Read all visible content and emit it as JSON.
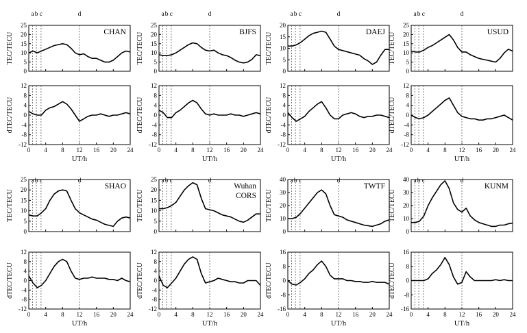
{
  "figure": {
    "x_label": "UT/h",
    "x_ticks": [
      0,
      4,
      8,
      12,
      16,
      20,
      24
    ],
    "x_range": [
      0,
      24
    ],
    "top_ylabel": "TEC/TECU",
    "bottom_ylabel": "dTEC/TECU",
    "events": [
      {
        "label": "a",
        "ut": 0.9
      },
      {
        "label": "b",
        "ut": 1.8
      },
      {
        "label": "c",
        "ut": 2.9
      },
      {
        "label": "d",
        "ut": 12.0
      }
    ]
  },
  "chart_data": [
    {
      "type": "line",
      "station": "CHAN",
      "tec": {
        "ylim": [
          0,
          25
        ],
        "yticks": [
          0,
          5,
          10,
          15,
          20,
          25
        ],
        "x": [
          0,
          1,
          2,
          3,
          4,
          5,
          6,
          7,
          8,
          9,
          10,
          11,
          12,
          13,
          14,
          15,
          16,
          17,
          18,
          19,
          20,
          21,
          22,
          23,
          24
        ],
        "y": [
          10,
          11,
          10,
          11,
          12,
          13,
          14,
          14.5,
          15,
          14.5,
          12.5,
          10,
          9,
          9.5,
          8,
          7,
          7,
          6,
          5,
          5,
          6,
          8,
          10,
          11,
          10.5
        ]
      },
      "dtec": {
        "ylim": [
          -12,
          12
        ],
        "yticks": [
          -12,
          -8,
          -4,
          0,
          4,
          8,
          12
        ],
        "x": [
          0,
          1,
          2,
          3,
          4,
          5,
          6,
          7,
          8,
          9,
          10,
          11,
          12,
          13,
          14,
          15,
          16,
          17,
          18,
          19,
          20,
          21,
          22,
          23,
          24
        ],
        "y": [
          1.5,
          0.5,
          0,
          0,
          2,
          3,
          3.5,
          4.5,
          5.5,
          4.5,
          2.5,
          0,
          -2.5,
          -1.5,
          -0.5,
          0,
          0,
          0.5,
          0,
          -0.5,
          0,
          0,
          0.5,
          1,
          0.5
        ]
      }
    },
    {
      "type": "line",
      "station": "BJFS",
      "tec": {
        "ylim": [
          0,
          25
        ],
        "yticks": [
          0,
          5,
          10,
          15,
          20,
          25
        ],
        "x": [
          0,
          1,
          2,
          3,
          4,
          5,
          6,
          7,
          8,
          9,
          10,
          11,
          12,
          13,
          14,
          15,
          16,
          17,
          18,
          19,
          20,
          21,
          22,
          23,
          24
        ],
        "y": [
          9,
          8.5,
          8.5,
          9,
          10,
          11.5,
          13,
          14.5,
          15.5,
          15,
          13,
          11.5,
          11,
          11.5,
          10,
          9,
          8.5,
          7.5,
          6,
          5,
          4.5,
          5,
          6.5,
          9,
          8.5
        ]
      },
      "dtec": {
        "ylim": [
          -12,
          12
        ],
        "yticks": [
          -12,
          -8,
          -4,
          0,
          4,
          8,
          12
        ],
        "x": [
          0,
          1,
          2,
          3,
          4,
          5,
          6,
          7,
          8,
          9,
          10,
          11,
          12,
          13,
          14,
          15,
          16,
          17,
          18,
          19,
          20,
          21,
          22,
          23,
          24
        ],
        "y": [
          2,
          1,
          -1,
          -1,
          1,
          2,
          3.5,
          5,
          6,
          5,
          2.5,
          0.5,
          0,
          0.5,
          0,
          0,
          0,
          0.5,
          0,
          0,
          -0.5,
          0,
          0.5,
          1,
          0.5
        ]
      }
    },
    {
      "type": "line",
      "station": "DAEJ",
      "tec": {
        "ylim": [
          0,
          20
        ],
        "yticks": [
          0,
          5,
          10,
          15,
          20
        ],
        "x": [
          0,
          1,
          2,
          3,
          4,
          5,
          6,
          7,
          8,
          9,
          10,
          11,
          12,
          13,
          14,
          15,
          16,
          17,
          18,
          19,
          20,
          21,
          22,
          23,
          24
        ],
        "y": [
          11,
          11,
          11.5,
          12.5,
          14,
          15.5,
          16.5,
          17,
          17.5,
          17,
          14,
          11,
          9.5,
          9,
          8.5,
          8,
          7.5,
          7,
          5.5,
          4.5,
          3,
          4,
          7,
          9.5,
          9.5
        ]
      },
      "dtec": {
        "ylim": [
          -12,
          12
        ],
        "yticks": [
          -12,
          -8,
          -4,
          0,
          4,
          8,
          12
        ],
        "x": [
          0,
          1,
          2,
          3,
          4,
          5,
          6,
          7,
          8,
          9,
          10,
          11,
          12,
          13,
          14,
          15,
          16,
          17,
          18,
          19,
          20,
          21,
          22,
          23,
          24
        ],
        "y": [
          1,
          -1,
          -2.5,
          -1.5,
          -0.5,
          1.5,
          3,
          4.5,
          5.5,
          3,
          0,
          -1.5,
          -1.5,
          0,
          0.5,
          1,
          0.5,
          -0.5,
          -1,
          -0.5,
          -0.5,
          0,
          0,
          -0.5,
          -1
        ]
      }
    },
    {
      "type": "line",
      "station": "USUD",
      "tec": {
        "ylim": [
          0,
          25
        ],
        "yticks": [
          0,
          5,
          10,
          15,
          20,
          25
        ],
        "x": [
          0,
          1,
          2,
          3,
          4,
          5,
          6,
          7,
          8,
          9,
          10,
          11,
          12,
          13,
          14,
          15,
          16,
          17,
          18,
          19,
          20,
          21,
          22,
          23,
          24
        ],
        "y": [
          11,
          10.5,
          10.5,
          11.5,
          13,
          14,
          15.5,
          17,
          18.5,
          20,
          17,
          13,
          10.5,
          10.5,
          9,
          8,
          7,
          6.5,
          6,
          5.5,
          5,
          7,
          10,
          12,
          11
        ]
      },
      "dtec": {
        "ylim": [
          -12,
          12
        ],
        "yticks": [
          -12,
          -8,
          -4,
          0,
          4,
          8,
          12
        ],
        "x": [
          0,
          1,
          2,
          3,
          4,
          5,
          6,
          7,
          8,
          9,
          10,
          11,
          12,
          13,
          14,
          15,
          16,
          17,
          18,
          19,
          20,
          21,
          22,
          23,
          24
        ],
        "y": [
          0,
          -1,
          -1.5,
          -1,
          0,
          1.5,
          3,
          4.5,
          6,
          7,
          4,
          1,
          -0.5,
          -1,
          -1.5,
          -1.5,
          -2,
          -2,
          -1.5,
          -1.5,
          -1,
          -0.5,
          0,
          -1,
          -2
        ]
      }
    },
    {
      "type": "line",
      "station": "SHAO",
      "tec": {
        "ylim": [
          0,
          25
        ],
        "yticks": [
          0,
          5,
          10,
          15,
          20,
          25
        ],
        "x": [
          0,
          1,
          2,
          3,
          4,
          5,
          6,
          7,
          8,
          9,
          10,
          11,
          12,
          13,
          14,
          15,
          16,
          17,
          18,
          19,
          20,
          21,
          22,
          23,
          24
        ],
        "y": [
          8,
          7.5,
          7.5,
          9,
          11,
          15,
          18,
          19.5,
          20,
          19.5,
          15,
          11,
          9,
          8,
          7,
          6,
          5.5,
          4.5,
          3.5,
          3,
          2.5,
          5,
          6.5,
          7,
          6.5
        ]
      },
      "dtec": {
        "ylim": [
          -12,
          12
        ],
        "yticks": [
          -12,
          -8,
          -4,
          0,
          4,
          8,
          12
        ],
        "x": [
          0,
          1,
          2,
          3,
          4,
          5,
          6,
          7,
          8,
          9,
          10,
          11,
          12,
          13,
          14,
          15,
          16,
          17,
          18,
          19,
          20,
          21,
          22,
          23,
          24
        ],
        "y": [
          2,
          -1,
          -3,
          -2,
          0,
          3,
          6,
          8,
          9,
          8,
          4,
          1,
          0.5,
          1,
          1,
          1.5,
          1,
          1,
          1,
          0.5,
          0.5,
          0,
          1,
          0,
          -0.5
        ]
      }
    },
    {
      "type": "line",
      "station": "Wuhan CORS",
      "tec": {
        "ylim": [
          0,
          25
        ],
        "yticks": [
          0,
          5,
          10,
          15,
          20,
          25
        ],
        "x": [
          0,
          1,
          2,
          3,
          4,
          5,
          6,
          7,
          8,
          9,
          10,
          11,
          12,
          13,
          14,
          15,
          16,
          17,
          18,
          19,
          20,
          21,
          22,
          23,
          24
        ],
        "y": [
          11,
          11,
          11.5,
          12.5,
          14,
          17,
          20,
          22,
          23.5,
          22.5,
          16,
          11,
          10.5,
          10,
          9,
          8,
          7.5,
          7,
          6,
          5,
          4.5,
          5.5,
          7,
          8.5,
          8.5
        ]
      },
      "dtec": {
        "ylim": [
          -12,
          12
        ],
        "yticks": [
          -12,
          -8,
          -4,
          0,
          4,
          8,
          12
        ],
        "x": [
          0,
          1,
          2,
          3,
          4,
          5,
          6,
          7,
          8,
          9,
          10,
          11,
          12,
          13,
          14,
          15,
          16,
          17,
          18,
          19,
          20,
          21,
          22,
          23,
          24
        ],
        "y": [
          2,
          -2,
          -3,
          -1,
          1,
          4,
          7,
          9,
          10,
          9,
          3,
          -1,
          -0.5,
          0,
          1,
          0.5,
          0,
          -0.5,
          -0.5,
          -1,
          -1,
          0,
          0,
          0,
          -2
        ]
      }
    },
    {
      "type": "line",
      "station": "TWTF",
      "tec": {
        "ylim": [
          0,
          40
        ],
        "yticks": [
          0,
          10,
          20,
          30,
          40
        ],
        "x": [
          0,
          1,
          2,
          3,
          4,
          5,
          6,
          7,
          8,
          9,
          10,
          11,
          12,
          13,
          14,
          15,
          16,
          17,
          18,
          19,
          20,
          21,
          22,
          23,
          24
        ],
        "y": [
          10,
          10,
          11,
          14,
          18,
          22,
          26,
          30,
          32,
          29,
          20,
          13,
          12,
          11,
          9,
          8,
          7,
          6,
          5,
          4.5,
          4,
          5,
          6,
          8,
          9
        ]
      },
      "dtec": {
        "ylim": [
          -16,
          16
        ],
        "yticks": [
          -16,
          -8,
          0,
          8,
          16
        ],
        "x": [
          0,
          1,
          2,
          3,
          4,
          5,
          6,
          7,
          8,
          9,
          10,
          11,
          12,
          13,
          14,
          15,
          16,
          17,
          18,
          19,
          20,
          21,
          22,
          23,
          24
        ],
        "y": [
          0,
          -2,
          -2.5,
          -1,
          1,
          4,
          6,
          9,
          11,
          8,
          3,
          1,
          1,
          1,
          0,
          0,
          -0.5,
          -0.5,
          -1,
          -1,
          -0.5,
          -1,
          -1,
          -1,
          -2
        ]
      }
    },
    {
      "type": "line",
      "station": "KUNM",
      "tec": {
        "ylim": [
          0,
          40
        ],
        "yticks": [
          0,
          10,
          20,
          30,
          40
        ],
        "x": [
          0,
          1,
          2,
          3,
          4,
          5,
          6,
          7,
          8,
          9,
          10,
          11,
          12,
          13,
          14,
          15,
          16,
          17,
          18,
          19,
          20,
          21,
          22,
          23,
          24
        ],
        "y": [
          7,
          7,
          8,
          12,
          20,
          26,
          31,
          36,
          39,
          33,
          22,
          17,
          15,
          18,
          12,
          9,
          7,
          6,
          5,
          4,
          4,
          5,
          5,
          6,
          6.5
        ]
      },
      "dtec": {
        "ylim": [
          -16,
          16
        ],
        "yticks": [
          -16,
          -8,
          0,
          8,
          16
        ],
        "x": [
          0,
          1,
          2,
          3,
          4,
          5,
          6,
          7,
          8,
          9,
          10,
          11,
          12,
          13,
          14,
          15,
          16,
          17,
          18,
          19,
          20,
          21,
          22,
          23,
          24
        ],
        "y": [
          0,
          0,
          0,
          0,
          1,
          4,
          6,
          9,
          13,
          9,
          2,
          -2,
          -1,
          5,
          2,
          0,
          0,
          0,
          0,
          0,
          0.5,
          0,
          0.5,
          0,
          0
        ]
      }
    }
  ]
}
